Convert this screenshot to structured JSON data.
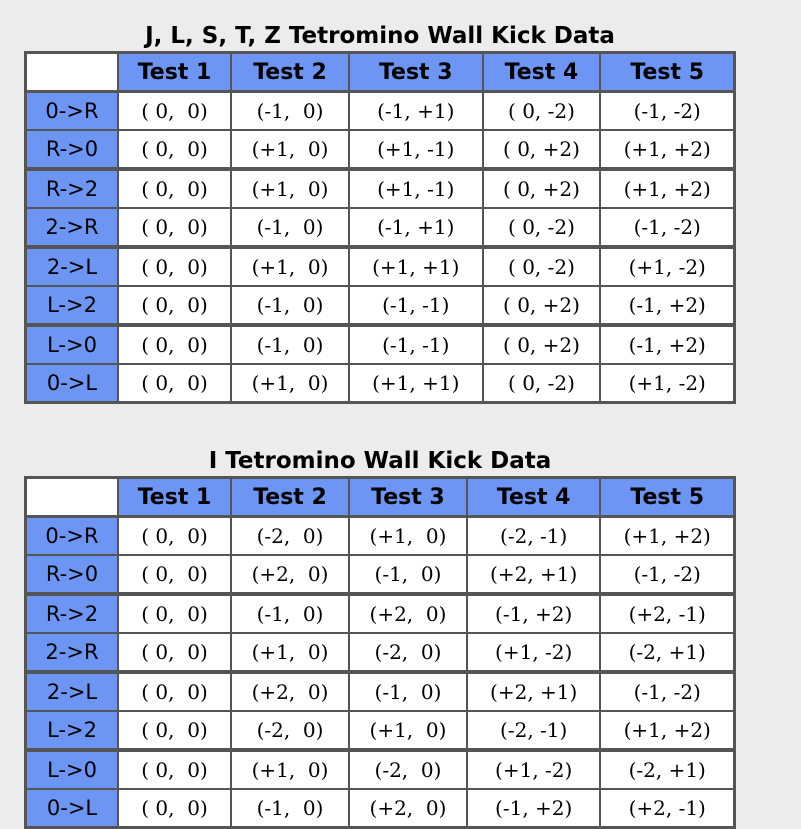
{
  "table1": {
    "caption": "J, L, S, T, Z Tetromino Wall Kick Data",
    "headers": [
      "Test 1",
      "Test 2",
      "Test 3",
      "Test 4",
      "Test 5"
    ],
    "rows": [
      {
        "rotation": "0->R",
        "tests": [
          "( 0,  0)",
          "(-1,  0)",
          "(-1, +1)",
          "( 0, -2)",
          "(-1, -2)"
        ]
      },
      {
        "rotation": "R->0",
        "tests": [
          "( 0,  0)",
          "(+1,  0)",
          "(+1, -1)",
          "( 0, +2)",
          "(+1, +2)"
        ]
      },
      {
        "rotation": "R->2",
        "tests": [
          "( 0,  0)",
          "(+1,  0)",
          "(+1, -1)",
          "( 0, +2)",
          "(+1, +2)"
        ]
      },
      {
        "rotation": "2->R",
        "tests": [
          "( 0,  0)",
          "(-1,  0)",
          "(-1, +1)",
          "( 0, -2)",
          "(-1, -2)"
        ]
      },
      {
        "rotation": "2->L",
        "tests": [
          "( 0,  0)",
          "(+1,  0)",
          "(+1, +1)",
          "( 0, -2)",
          "(+1, -2)"
        ]
      },
      {
        "rotation": "L->2",
        "tests": [
          "( 0,  0)",
          "(-1,  0)",
          "(-1, -1)",
          "( 0, +2)",
          "(-1, +2)"
        ]
      },
      {
        "rotation": "L->0",
        "tests": [
          "( 0,  0)",
          "(-1,  0)",
          "(-1, -1)",
          "( 0, +2)",
          "(-1, +2)"
        ]
      },
      {
        "rotation": "0->L",
        "tests": [
          "( 0,  0)",
          "(+1,  0)",
          "(+1, +1)",
          "( 0, -2)",
          "(+1, -2)"
        ]
      }
    ]
  },
  "table2": {
    "caption": "I Tetromino Wall Kick Data",
    "headers": [
      "Test 1",
      "Test 2",
      "Test 3",
      "Test 4",
      "Test 5"
    ],
    "rows": [
      {
        "rotation": "0->R",
        "tests": [
          "( 0,  0)",
          "(-2,  0)",
          "(+1,  0)",
          "(-2, -1)",
          "(+1, +2)"
        ]
      },
      {
        "rotation": "R->0",
        "tests": [
          "( 0,  0)",
          "(+2,  0)",
          "(-1,  0)",
          "(+2, +1)",
          "(-1, -2)"
        ]
      },
      {
        "rotation": "R->2",
        "tests": [
          "( 0,  0)",
          "(-1,  0)",
          "(+2,  0)",
          "(-1, +2)",
          "(+2, -1)"
        ]
      },
      {
        "rotation": "2->R",
        "tests": [
          "( 0,  0)",
          "(+1,  0)",
          "(-2,  0)",
          "(+1, -2)",
          "(-2, +1)"
        ]
      },
      {
        "rotation": "2->L",
        "tests": [
          "( 0,  0)",
          "(+2,  0)",
          "(-1,  0)",
          "(+2, +1)",
          "(-1, -2)"
        ]
      },
      {
        "rotation": "L->2",
        "tests": [
          "( 0,  0)",
          "(-2,  0)",
          "(+1,  0)",
          "(-2, -1)",
          "(+1, +2)"
        ]
      },
      {
        "rotation": "L->0",
        "tests": [
          "( 0,  0)",
          "(+1,  0)",
          "(-2,  0)",
          "(+1, -2)",
          "(-2, +1)"
        ]
      },
      {
        "rotation": "0->L",
        "tests": [
          "( 0,  0)",
          "(-1,  0)",
          "(+2,  0)",
          "(-1, +2)",
          "(+2, -1)"
        ]
      }
    ]
  },
  "colors": {
    "header_fill": "#6d95f3",
    "border": "#555555",
    "page_background": "#ececec"
  }
}
